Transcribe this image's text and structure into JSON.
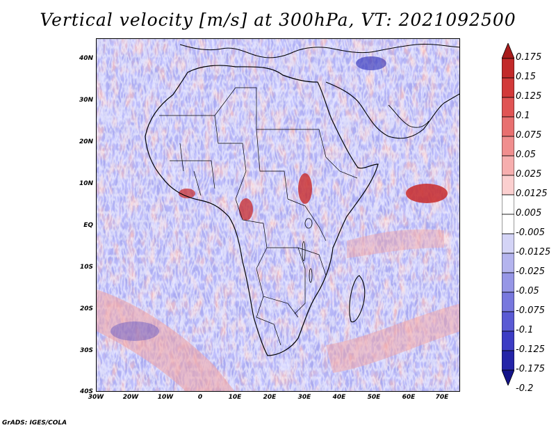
{
  "title": "Vertical velocity [m/s] at 300hPa, VT: 2021092500",
  "credit": "GrADS: IGES/COLA",
  "map": {
    "region": "Africa",
    "variable": "vertical velocity",
    "level": "300hPa",
    "valid_time": "2021092500",
    "lat_ticks": [
      "40N",
      "30N",
      "20N",
      "10N",
      "EQ",
      "10S",
      "20S",
      "30S",
      "40S"
    ],
    "lon_ticks": [
      "30W",
      "20W",
      "10W",
      "0",
      "10E",
      "20E",
      "30E",
      "40E",
      "50E",
      "60E",
      "70E"
    ]
  },
  "colorbar": {
    "labels": [
      "0.175",
      "0.15",
      "0.125",
      "0.1",
      "0.075",
      "0.05",
      "0.025",
      "0.0125",
      "0.005",
      "-0.005",
      "-0.0125",
      "-0.025",
      "-0.05",
      "-0.075",
      "-0.1",
      "-0.125",
      "-0.175",
      "-0.2"
    ],
    "colors": [
      "#a81c1c",
      "#c22a2a",
      "#d23a3a",
      "#e05454",
      "#e87070",
      "#f08e8e",
      "#f6aeae",
      "#fbcfcf",
      "#ffffff",
      "#ffffff",
      "#d4d4f6",
      "#b4b4ee",
      "#9696e6",
      "#7878de",
      "#5a5ad4",
      "#3c3cc4",
      "#2424a8",
      "#14148a"
    ]
  }
}
